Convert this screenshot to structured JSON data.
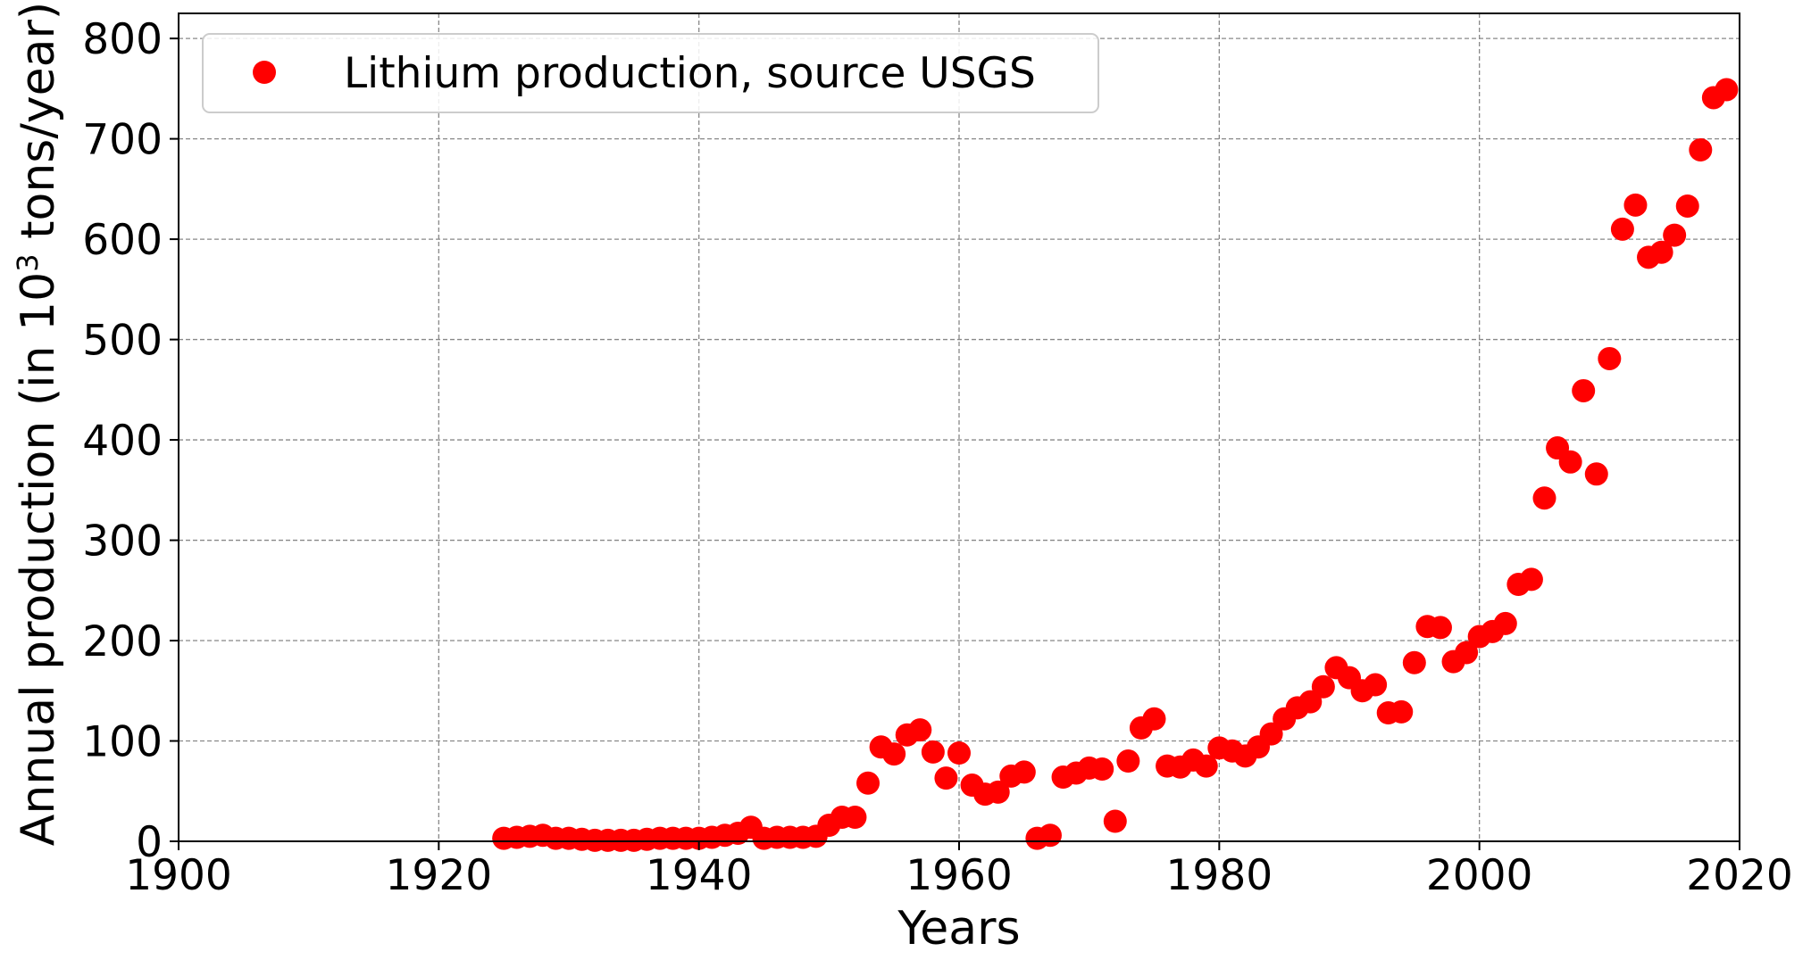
{
  "chart_data": {
    "type": "scatter",
    "xlabel": "Years",
    "ylabel_prefix": "Annual production (in 10",
    "ylabel_sup": "3",
    "ylabel_suffix": " tons/year)",
    "xlim": [
      1900,
      2020
    ],
    "ylim": [
      0,
      825
    ],
    "xticks": [
      "1900",
      "1920",
      "1940",
      "1960",
      "1980",
      "2000",
      "2020"
    ],
    "yticks": [
      "0",
      "100",
      "200",
      "300",
      "400",
      "500",
      "600",
      "700",
      "800"
    ],
    "grid": true,
    "legend_position": "top-left",
    "series": [
      {
        "name": "Lithium production, source USGS",
        "color": "#ff0000",
        "marker": "circle",
        "points": [
          [
            1925,
            3
          ],
          [
            1926,
            4
          ],
          [
            1927,
            5
          ],
          [
            1928,
            6
          ],
          [
            1929,
            3
          ],
          [
            1930,
            3
          ],
          [
            1931,
            2
          ],
          [
            1932,
            1
          ],
          [
            1933,
            1
          ],
          [
            1934,
            1
          ],
          [
            1935,
            1
          ],
          [
            1936,
            2
          ],
          [
            1937,
            3
          ],
          [
            1938,
            3
          ],
          [
            1939,
            3
          ],
          [
            1940,
            3
          ],
          [
            1941,
            4
          ],
          [
            1942,
            6
          ],
          [
            1943,
            8
          ],
          [
            1944,
            14
          ],
          [
            1945,
            3
          ],
          [
            1946,
            4
          ],
          [
            1947,
            4
          ],
          [
            1948,
            4
          ],
          [
            1949,
            5
          ],
          [
            1950,
            16
          ],
          [
            1951,
            24
          ],
          [
            1952,
            24
          ],
          [
            1953,
            58
          ],
          [
            1954,
            94
          ],
          [
            1955,
            87
          ],
          [
            1956,
            106
          ],
          [
            1957,
            111
          ],
          [
            1958,
            89
          ],
          [
            1959,
            63
          ],
          [
            1960,
            88
          ],
          [
            1961,
            56
          ],
          [
            1962,
            47
          ],
          [
            1963,
            49
          ],
          [
            1964,
            65
          ],
          [
            1965,
            69
          ],
          [
            1966,
            3
          ],
          [
            1967,
            6
          ],
          [
            1968,
            64
          ],
          [
            1969,
            68
          ],
          [
            1970,
            73
          ],
          [
            1971,
            72
          ],
          [
            1972,
            20
          ],
          [
            1973,
            80
          ],
          [
            1974,
            113
          ],
          [
            1975,
            122
          ],
          [
            1976,
            75
          ],
          [
            1977,
            74
          ],
          [
            1978,
            81
          ],
          [
            1979,
            75
          ],
          [
            1980,
            93
          ],
          [
            1981,
            90
          ],
          [
            1982,
            85
          ],
          [
            1983,
            94
          ],
          [
            1984,
            107
          ],
          [
            1985,
            122
          ],
          [
            1986,
            133
          ],
          [
            1987,
            139
          ],
          [
            1988,
            154
          ],
          [
            1989,
            173
          ],
          [
            1990,
            163
          ],
          [
            1991,
            150
          ],
          [
            1992,
            156
          ],
          [
            1993,
            128
          ],
          [
            1994,
            129
          ],
          [
            1995,
            178
          ],
          [
            1996,
            214
          ],
          [
            1997,
            213
          ],
          [
            1998,
            179
          ],
          [
            1999,
            188
          ],
          [
            2000,
            204
          ],
          [
            2001,
            209
          ],
          [
            2002,
            217
          ],
          [
            2003,
            256
          ],
          [
            2004,
            261
          ],
          [
            2005,
            342
          ],
          [
            2006,
            392
          ],
          [
            2007,
            378
          ],
          [
            2008,
            449
          ],
          [
            2009,
            366
          ],
          [
            2010,
            481
          ],
          [
            2011,
            610
          ],
          [
            2012,
            634
          ],
          [
            2013,
            582
          ],
          [
            2014,
            587
          ],
          [
            2015,
            604
          ],
          [
            2016,
            633
          ],
          [
            2017,
            689
          ],
          [
            2018,
            741
          ],
          [
            2019,
            749
          ]
        ]
      }
    ]
  }
}
